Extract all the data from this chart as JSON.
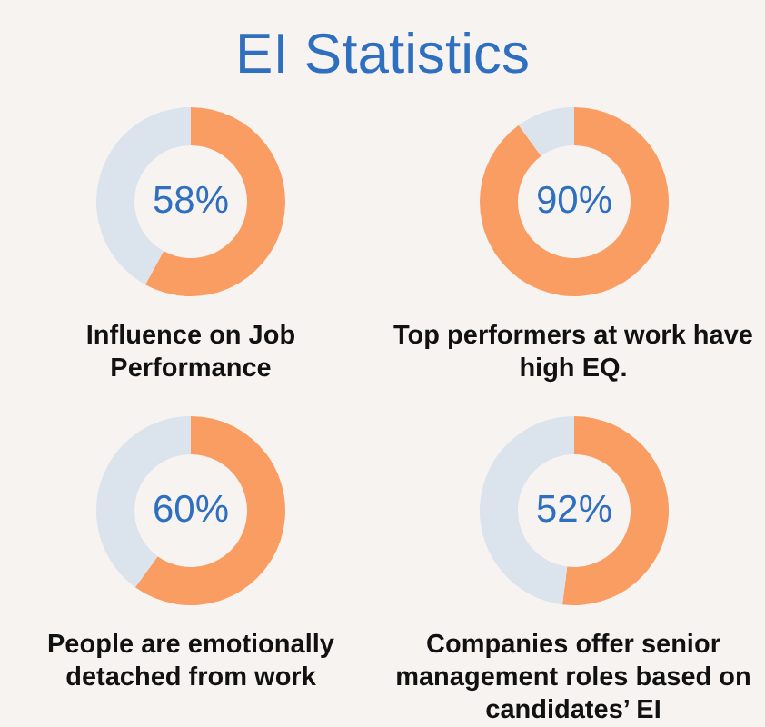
{
  "chart_data": [
    {
      "type": "other",
      "title": "EI Statistics"
    },
    {
      "type": "donut",
      "categories": [
        null,
        null
      ],
      "values": [
        58,
        42
      ],
      "colors": [
        "#f99d62",
        "#dbe3ec"
      ],
      "value_labels": [
        "58%",
        null
      ],
      "xlabel": "Influence on Job Performance"
    },
    {
      "type": "donut",
      "categories": [
        null,
        null
      ],
      "values": [
        90,
        10
      ],
      "colors": [
        "#f99d62",
        "#dbe3ec"
      ],
      "value_labels": [
        "90%",
        null
      ],
      "xlabel": "Top performers at work have high EQ."
    },
    {
      "type": "donut",
      "categories": [
        null,
        null
      ],
      "values": [
        60,
        40
      ],
      "colors": [
        "#f99d62",
        "#dbe3ec"
      ],
      "value_labels": [
        "60%",
        null
      ],
      "xlabel": "People are emotionally detached from work"
    },
    {
      "type": "donut",
      "categories": [
        null,
        null
      ],
      "values": [
        52,
        48
      ],
      "colors": [
        "#f99d62",
        "#dbe3ec"
      ],
      "value_labels": [
        "52%",
        null
      ],
      "xlabel": "Companies offer senior management roles based on candidates’ EI"
    }
  ]
}
